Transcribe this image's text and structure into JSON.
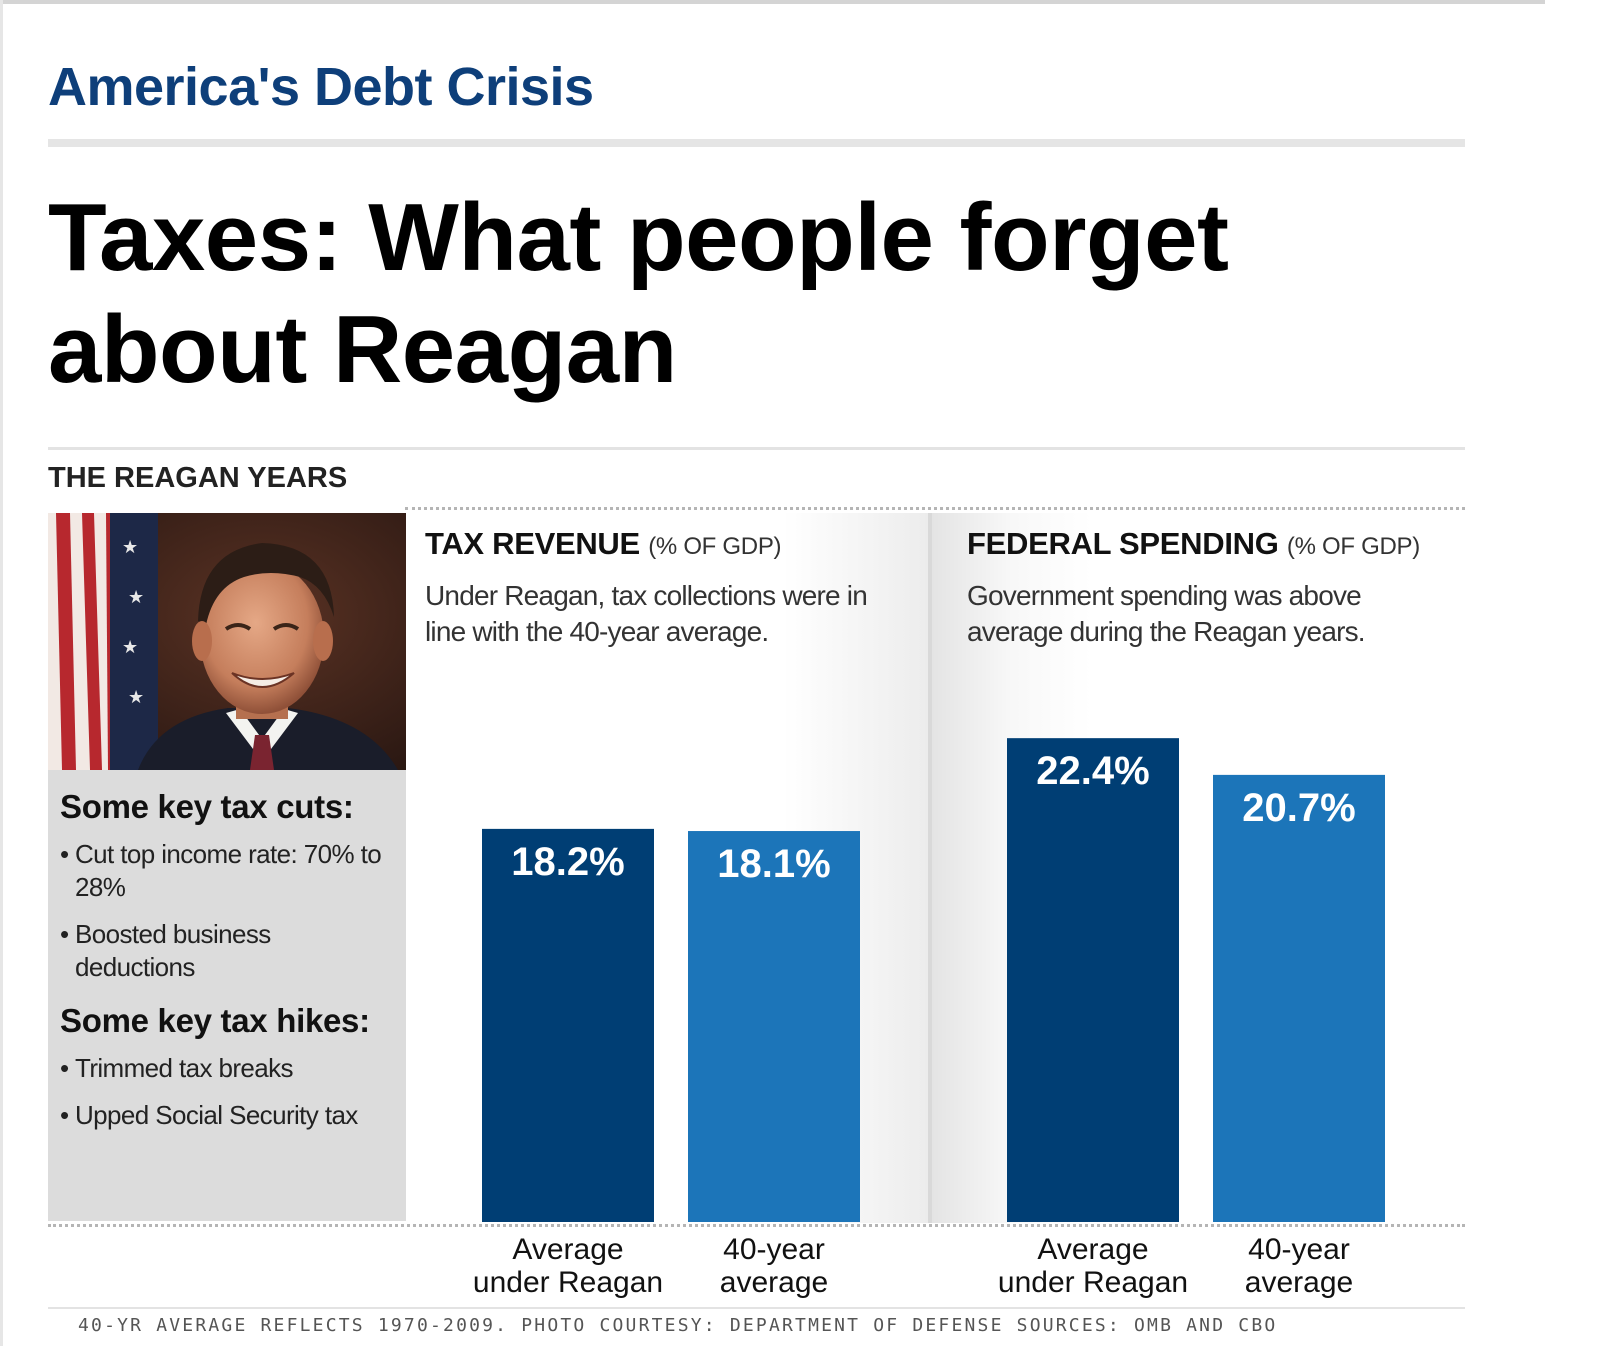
{
  "header": {
    "section_title": "America's Debt Crisis",
    "headline": "Taxes: What people forget about Reagan"
  },
  "graphic": {
    "kicker": "THE REAGAN YEARS",
    "sidebar": {
      "cuts_heading": "Some key tax cuts:",
      "cuts": [
        "Cut top income rate: 70% to 28%",
        "Boosted business deductions"
      ],
      "hikes_heading": "Some key tax hikes:",
      "hikes": [
        "Trimmed tax breaks",
        "Upped Social Security tax"
      ]
    },
    "footnote": "40-YR AVERAGE REFLECTS 1970-2009. PHOTO COURTESY: DEPARTMENT OF DEFENSE SOURCES: OMB AND CBO"
  },
  "chart_data": [
    {
      "type": "bar",
      "title": "TAX REVENUE",
      "unit_label": "(% OF GDP)",
      "subtitle": "Under Reagan, tax collections were in line with the 40-year average.",
      "categories": [
        "Average under Reagan",
        "40-year average"
      ],
      "category_lines": [
        [
          "Average",
          "under Reagan"
        ],
        [
          "40-year",
          "average"
        ]
      ],
      "values": [
        18.2,
        18.1
      ],
      "value_labels": [
        "18.2%",
        "18.1%"
      ],
      "colors": [
        "#003e74",
        "#1c75b9"
      ],
      "ylim": [
        0,
        24
      ]
    },
    {
      "type": "bar",
      "title": "FEDERAL SPENDING",
      "unit_label": "(% OF GDP)",
      "subtitle": "Government spending was above average during the Reagan years.",
      "categories": [
        "Average under Reagan",
        "40-year average"
      ],
      "category_lines": [
        [
          "Average",
          "under Reagan"
        ],
        [
          "40-year",
          "average"
        ]
      ],
      "values": [
        22.4,
        20.7
      ],
      "value_labels": [
        "22.4%",
        "20.7%"
      ],
      "colors": [
        "#003e74",
        "#1c75b9"
      ],
      "ylim": [
        0,
        24
      ]
    }
  ]
}
